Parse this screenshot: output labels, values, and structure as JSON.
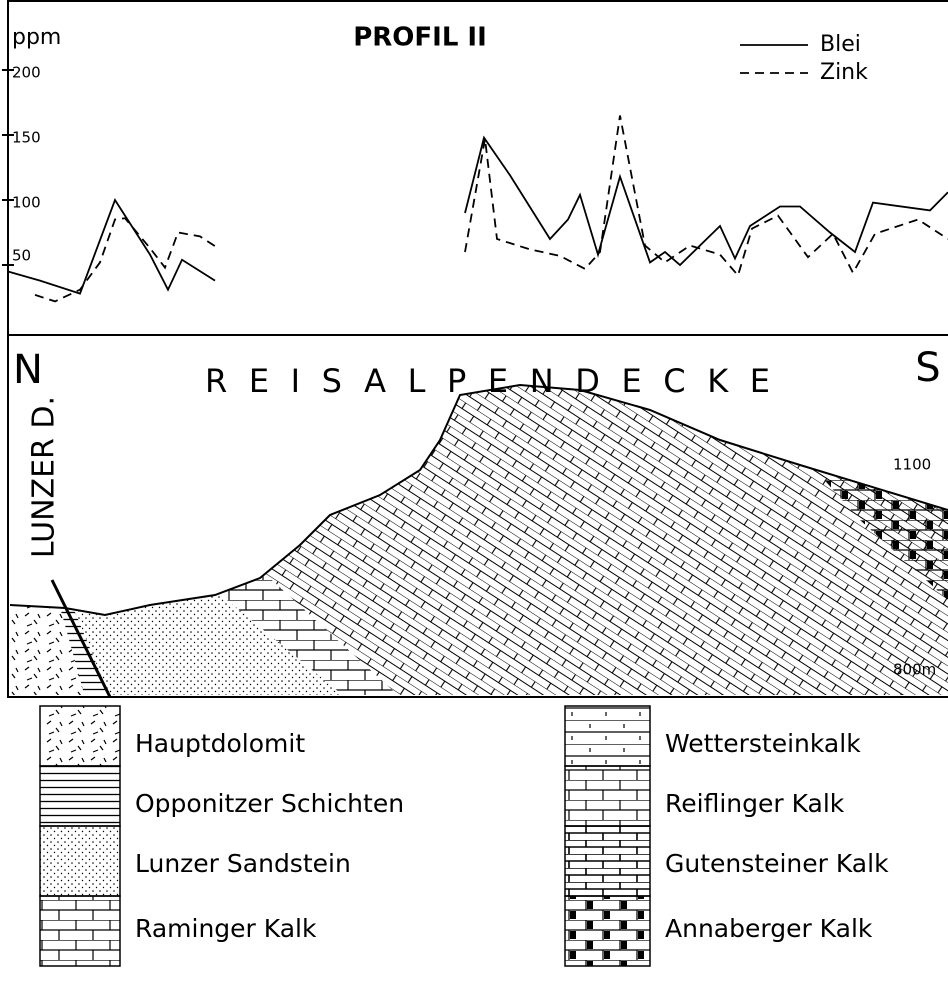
{
  "chart_data": {
    "type": "line",
    "title": "PROFIL II",
    "y_label": "ppm",
    "xlim": [
      0,
      948
    ],
    "ylim": [
      0,
      250
    ],
    "yticks": [
      50,
      100,
      150,
      200
    ],
    "legend": "upper-right",
    "series": [
      {
        "name": "Blei",
        "color": "#000000",
        "linestyle": "solid",
        "x": [
          8,
          40,
          80,
          115,
          150,
          168,
          182,
          215,
          null,
          465,
          484,
          510,
          550,
          568,
          580,
          598,
          620,
          650,
          665,
          680,
          720,
          735,
          750,
          780,
          800,
          830,
          855,
          873,
          930,
          948
        ],
        "values": [
          45,
          38,
          28,
          100,
          58,
          31,
          54,
          38,
          null,
          90,
          148,
          119,
          70,
          85,
          104,
          58,
          118,
          52,
          60,
          50,
          80,
          55,
          80,
          95,
          95,
          75,
          60,
          98,
          92,
          106
        ]
      },
      {
        "name": "Zink",
        "color": "#000000",
        "linestyle": "dashed",
        "x": [
          35,
          55,
          80,
          100,
          115,
          125,
          150,
          165,
          178,
          200,
          218,
          null,
          465,
          485,
          497,
          530,
          560,
          585,
          600,
          620,
          645,
          665,
          690,
          720,
          738,
          752,
          778,
          808,
          833,
          853,
          875,
          918,
          948
        ],
        "values": [
          27,
          22,
          31,
          52,
          85,
          86,
          63,
          48,
          75,
          72,
          63,
          null,
          60,
          147,
          70,
          62,
          57,
          47,
          60,
          165,
          65,
          52,
          65,
          58,
          42,
          78,
          88,
          56,
          74,
          44,
          74,
          85,
          70
        ]
      }
    ]
  },
  "cross_section": {
    "north": "N",
    "south": "S",
    "title": "REISALPENDECKE",
    "fault": "LUNZER D.",
    "elevation_high": "1100",
    "elevation_low": "800m"
  },
  "legend_left": [
    "Hauptdolomit",
    "Opponitzer Schichten",
    "Lunzer Sandstein",
    "Raminger Kalk"
  ],
  "legend_right": [
    "Wettersteinkalk",
    "Reiflinger Kalk",
    "Gutensteiner Kalk",
    "Annaberger Kalk"
  ]
}
